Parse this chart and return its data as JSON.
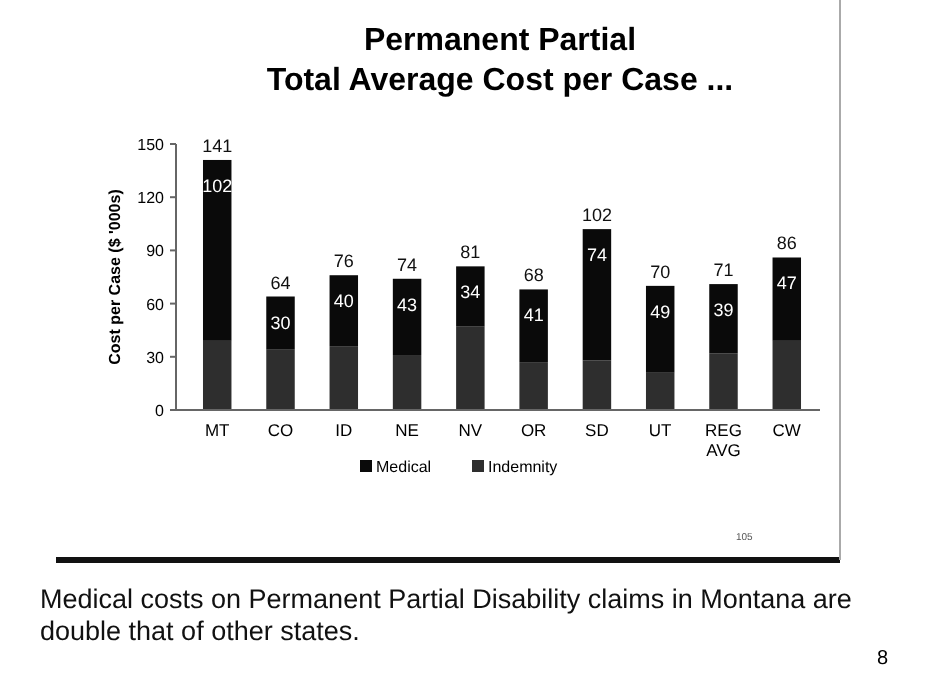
{
  "chart_data": {
    "type": "bar",
    "title": "Permanent Partial",
    "subtitle": "Total Average Cost per Case ...",
    "ylabel": "Cost per Case ($ '000s)",
    "categories": [
      "MT",
      "CO",
      "ID",
      "NE",
      "NV",
      "OR",
      "SD",
      "UT",
      "REG AVG",
      "CW"
    ],
    "stacked": true,
    "ylim": [
      0,
      150
    ],
    "yticks": [
      0,
      30,
      60,
      90,
      120,
      150
    ],
    "grid": false,
    "legend": "bottom",
    "series": [
      {
        "name": "Indemnity",
        "color": "#2e2e2e",
        "values": [
          39,
          34,
          36,
          31,
          47,
          27,
          28,
          21,
          32,
          39
        ]
      },
      {
        "name": "Medical",
        "color": "#0a0a0a",
        "values": [
          102,
          30,
          40,
          43,
          34,
          41,
          74,
          49,
          39,
          47
        ],
        "value_labels": [
          "102",
          "30",
          "40",
          "43",
          "34",
          "41",
          "74",
          "49",
          "39",
          "47"
        ]
      }
    ],
    "totals": [
      "141",
      "64",
      "76",
      "74",
      "81",
      "68",
      "102",
      "70",
      "71",
      "86"
    ],
    "annotations": [
      "105",
      "Medical costs on Permanent Partial Disability claims in Montana are double that of other states.",
      "8"
    ]
  }
}
